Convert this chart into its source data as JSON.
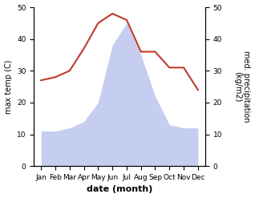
{
  "months": [
    "Jan",
    "Feb",
    "Mar",
    "Apr",
    "May",
    "Jun",
    "Jul",
    "Aug",
    "Sep",
    "Oct",
    "Nov",
    "Dec"
  ],
  "temperature": [
    27,
    28,
    30,
    37,
    45,
    48,
    46,
    36,
    36,
    31,
    31,
    24
  ],
  "precipitation": [
    11,
    11,
    12,
    14,
    20,
    38,
    45,
    35,
    22,
    13,
    12,
    12
  ],
  "temp_color": "#c0392b",
  "precip_fill_color": "#c5cef0",
  "ylabel_left": "max temp (C)",
  "ylabel_right": "med. precipitation\n(kg/m2)",
  "xlabel": "date (month)",
  "ylim": [
    0,
    50
  ],
  "yticks": [
    0,
    10,
    20,
    30,
    40,
    50
  ],
  "title_fontsize": 8,
  "label_fontsize": 7,
  "tick_fontsize": 6.5
}
